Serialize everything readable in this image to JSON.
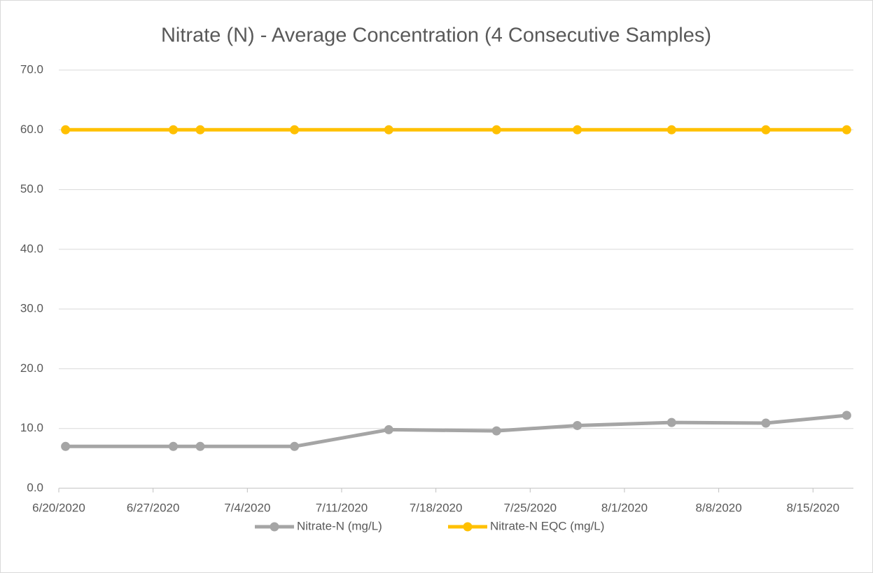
{
  "chart_data": {
    "type": "line",
    "title": "Nitrate (N) - Average Concentration (4 Consecutive Samples)",
    "x": [
      "6/20/2020",
      "6/28/2020",
      "6/30/2020",
      "7/7/2020",
      "7/14/2020",
      "7/22/2020",
      "7/28/2020",
      "8/4/2020",
      "8/11/2020",
      "8/17/2020"
    ],
    "series": [
      {
        "name": "Nitrate-N (mg/L)",
        "color": "#a5a5a5",
        "values": [
          7.0,
          7.0,
          7.0,
          7.0,
          9.8,
          9.6,
          10.5,
          11.0,
          10.9,
          12.2
        ]
      },
      {
        "name": "Nitrate-N EQC (mg/L)",
        "color": "#ffc000",
        "values": [
          60,
          60,
          60,
          60,
          60,
          60,
          60,
          60,
          60,
          60
        ]
      }
    ],
    "xlim": [
      "6/20/2020",
      "8/18/2020"
    ],
    "xticks": [
      "6/20/2020",
      "6/27/2020",
      "7/4/2020",
      "7/11/2020",
      "7/18/2020",
      "7/25/2020",
      "8/1/2020",
      "8/8/2020",
      "8/15/2020"
    ],
    "ylim": [
      0,
      70
    ],
    "yticks": [
      {
        "value": 0,
        "label": "0.0"
      },
      {
        "value": 10,
        "label": "10.0"
      },
      {
        "value": 20,
        "label": "20.0"
      },
      {
        "value": 30,
        "label": "30.0"
      },
      {
        "value": 40,
        "label": "40.0"
      },
      {
        "value": 50,
        "label": "50.0"
      },
      {
        "value": 60,
        "label": "60.0"
      },
      {
        "value": 70,
        "label": "70.0"
      }
    ],
    "grid": true,
    "legend": "bottom"
  }
}
